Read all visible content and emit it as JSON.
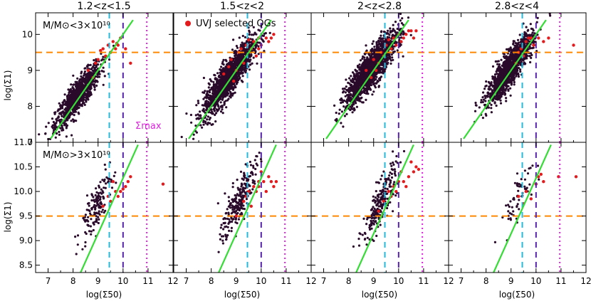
{
  "figure": {
    "column_titles": [
      "1.2<z<1.5",
      "1.5<z<2",
      "2<z<2.8",
      "2.8<z<4"
    ],
    "xlabel": "log(Σ50)",
    "ylabel_top": "log(Σ1)",
    "ylabel_bottom": "log(Σ1)",
    "row_annotations": [
      "M/M⊙<3×10¹⁰",
      "M/M⊙>3×10¹⁰"
    ],
    "legend_label": "UVJ selected QGs",
    "sigma_max_label": "Σmax"
  },
  "colors": {
    "all_galaxies": "#2a0a2a",
    "quiescent": "#e41a1c",
    "fit_line": "#33dd33",
    "sigma50_threshold": "#22bbdd",
    "sigma50_threshold_2": "#5522aa",
    "sigma_max": "#dd22dd",
    "sigma1_threshold": "#ff8800"
  },
  "chart_data": {
    "type": "scatter",
    "layout": "2 rows x 4 columns, shared x axis per column, shared y axis per row",
    "xlim": [
      6.5,
      12
    ],
    "x_ticks": [
      7,
      8,
      9,
      10,
      11,
      12
    ],
    "rows": [
      {
        "name": "low-mass",
        "ylim": [
          7,
          10.6
        ],
        "y_ticks": [
          7,
          8,
          9,
          10
        ],
        "sigma1_threshold": 9.5
      },
      {
        "name": "high-mass",
        "ylim": [
          8.35,
          11.0
        ],
        "y_ticks": [
          8.5,
          9.0,
          9.5,
          10.0,
          10.5,
          11.0
        ],
        "sigma1_threshold": 9.5
      }
    ],
    "vertical_lines": [
      {
        "x": 9.45,
        "style": "dashed",
        "color": "sigma50_threshold"
      },
      {
        "x": 10.0,
        "style": "dashed",
        "color": "sigma50_threshold_2"
      },
      {
        "x": 10.95,
        "style": "dotted",
        "color": "sigma_max"
      }
    ],
    "fit_lines": [
      {
        "row": 0,
        "points": [
          [
            7.1,
            7.1
          ],
          [
            10.4,
            10.4
          ]
        ]
      },
      {
        "row": 1,
        "points": [
          [
            8.3,
            8.35
          ],
          [
            10.6,
            10.95
          ]
        ]
      }
    ],
    "panels": [
      {
        "row": 0,
        "col": 0,
        "all_galaxies": {
          "center": [
            8.2,
            8.3
          ],
          "spread_x": 0.45,
          "spread_y": 0.4,
          "count": 900,
          "slope": 0.85
        },
        "quiescent": [
          [
            9.2,
            9.6
          ],
          [
            9.4,
            9.7
          ],
          [
            9.6,
            9.8
          ],
          [
            9.9,
            9.9
          ],
          [
            9.7,
            9.6
          ],
          [
            9.3,
            9.4
          ],
          [
            8.9,
            9.2
          ],
          [
            9.8,
            9.7
          ],
          [
            10.1,
            9.6
          ],
          [
            9.5,
            9.5
          ],
          [
            8.6,
            9.0
          ],
          [
            9.0,
            9.3
          ],
          [
            10.3,
            9.2
          ],
          [
            9.75,
            9.75
          ],
          [
            9.1,
            9.55
          ],
          [
            8.8,
            8.8
          ]
        ]
      },
      {
        "row": 0,
        "col": 1,
        "all_galaxies": {
          "center": [
            8.7,
            8.8
          ],
          "spread_x": 0.5,
          "spread_y": 0.45,
          "count": 1500,
          "slope": 0.9
        },
        "quiescent": [
          [
            9.4,
            9.7
          ],
          [
            9.7,
            9.8
          ],
          [
            9.9,
            9.9
          ],
          [
            10.2,
            9.9
          ],
          [
            10.4,
            9.9
          ],
          [
            9.1,
            9.5
          ],
          [
            8.8,
            9.3
          ],
          [
            9.6,
            9.6
          ],
          [
            10.0,
            9.7
          ],
          [
            9.3,
            9.2
          ],
          [
            8.5,
            8.9
          ],
          [
            9.0,
            9.0
          ],
          [
            10.5,
            10.0
          ],
          [
            9.8,
            9.4
          ],
          [
            8.9,
            8.7
          ],
          [
            9.5,
            9.85
          ],
          [
            10.3,
            9.8
          ],
          [
            9.2,
            9.6
          ],
          [
            8.7,
            9.1
          ],
          [
            9.9,
            9.6
          ]
        ]
      },
      {
        "row": 0,
        "col": 2,
        "all_galaxies": {
          "center": [
            8.9,
            9.05
          ],
          "spread_x": 0.5,
          "spread_y": 0.45,
          "count": 1600,
          "slope": 0.85
        },
        "quiescent": [
          [
            9.5,
            9.7
          ],
          [
            9.8,
            9.9
          ],
          [
            10.0,
            10.0
          ],
          [
            10.3,
            10.0
          ],
          [
            10.6,
            9.9
          ],
          [
            9.3,
            9.5
          ],
          [
            9.0,
            9.3
          ],
          [
            9.7,
            9.6
          ],
          [
            10.1,
            9.8
          ],
          [
            9.4,
            9.4
          ],
          [
            8.7,
            9.0
          ],
          [
            9.2,
            9.2
          ],
          [
            10.4,
            10.1
          ],
          [
            9.9,
            9.7
          ],
          [
            8.9,
            8.8
          ],
          [
            9.6,
            9.85
          ],
          [
            10.2,
            9.9
          ],
          [
            9.1,
            9.0
          ],
          [
            10.5,
            10.1
          ],
          [
            10.7,
            10.1
          ]
        ]
      },
      {
        "row": 0,
        "col": 3,
        "all_galaxies": {
          "center": [
            8.95,
            9.05
          ],
          "spread_x": 0.45,
          "spread_y": 0.42,
          "count": 1300,
          "slope": 0.9
        },
        "quiescent": [
          [
            9.4,
            9.6
          ],
          [
            9.6,
            9.8
          ],
          [
            9.8,
            9.9
          ],
          [
            10.1,
            9.9
          ],
          [
            9.3,
            9.5
          ],
          [
            9.5,
            9.4
          ],
          [
            9.9,
            9.7
          ],
          [
            10.3,
            9.8
          ],
          [
            9.2,
            9.2
          ],
          [
            11.5,
            9.7
          ],
          [
            9.7,
            9.9
          ],
          [
            10.5,
            9.9
          ]
        ]
      },
      {
        "row": 1,
        "col": 0,
        "all_galaxies": {
          "center": [
            8.9,
            9.7
          ],
          "spread_x": 0.3,
          "spread_y": 0.4,
          "count": 150,
          "slope": 0.9
        },
        "quiescent": [
          [
            9.4,
            9.9
          ],
          [
            9.7,
            10.0
          ],
          [
            9.9,
            10.0
          ],
          [
            10.1,
            10.1
          ],
          [
            9.6,
            10.2
          ],
          [
            9.8,
            9.9
          ],
          [
            10.3,
            10.3
          ],
          [
            11.6,
            10.15
          ],
          [
            9.5,
            9.8
          ],
          [
            10.0,
            10.05
          ],
          [
            9.2,
            9.7
          ],
          [
            10.2,
            10.2
          ]
        ]
      },
      {
        "row": 1,
        "col": 1,
        "all_galaxies": {
          "center": [
            9.1,
            9.8
          ],
          "spread_x": 0.35,
          "spread_y": 0.4,
          "count": 240,
          "slope": 0.9
        },
        "quiescent": [
          [
            9.5,
            10.0
          ],
          [
            9.7,
            10.1
          ],
          [
            9.9,
            10.2
          ],
          [
            10.1,
            10.2
          ],
          [
            10.3,
            10.3
          ],
          [
            10.5,
            10.1
          ],
          [
            9.8,
            10.0
          ],
          [
            10.0,
            10.4
          ],
          [
            9.3,
            9.8
          ],
          [
            10.2,
            10.0
          ],
          [
            9.6,
            9.7
          ],
          [
            10.4,
            10.2
          ],
          [
            9.0,
            9.5
          ],
          [
            9.9,
            10.1
          ],
          [
            10.6,
            10.2
          ],
          [
            9.4,
            9.9
          ]
        ]
      },
      {
        "row": 1,
        "col": 2,
        "all_galaxies": {
          "center": [
            9.25,
            9.75
          ],
          "spread_x": 0.35,
          "spread_y": 0.4,
          "count": 220,
          "slope": 0.9
        },
        "quiescent": [
          [
            9.6,
            10.0
          ],
          [
            9.8,
            10.1
          ],
          [
            10.0,
            10.2
          ],
          [
            10.2,
            10.2
          ],
          [
            10.4,
            10.3
          ],
          [
            10.6,
            10.4
          ],
          [
            10.7,
            10.5
          ],
          [
            9.9,
            10.0
          ],
          [
            10.1,
            10.4
          ],
          [
            9.4,
            9.8
          ],
          [
            10.3,
            10.1
          ],
          [
            9.7,
            9.9
          ],
          [
            9.2,
            9.6
          ],
          [
            10.5,
            10.6
          ],
          [
            10.8,
            10.45
          ]
        ]
      },
      {
        "row": 1,
        "col": 3,
        "all_galaxies": {
          "center": [
            9.3,
            9.95
          ],
          "spread_x": 0.35,
          "spread_y": 0.35,
          "count": 60,
          "slope": 0.9
        },
        "quiescent": [
          [
            9.3,
            9.9
          ],
          [
            9.6,
            10.0
          ],
          [
            10.0,
            10.15
          ],
          [
            10.1,
            10.3
          ],
          [
            10.3,
            10.2
          ],
          [
            10.9,
            10.3
          ],
          [
            11.6,
            10.3
          ],
          [
            9.8,
            9.85
          ],
          [
            10.2,
            10.35
          ],
          [
            9.5,
            9.75
          ]
        ]
      }
    ]
  }
}
